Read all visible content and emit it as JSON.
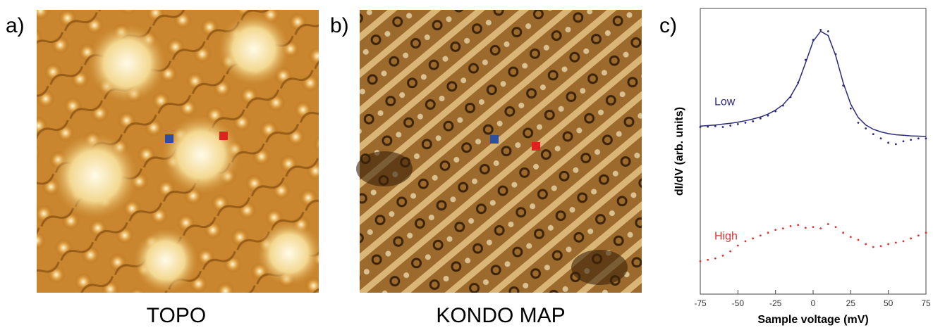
{
  "panels": {
    "a": {
      "letter": "a)",
      "caption": "TOPO"
    },
    "b": {
      "letter": "b)",
      "caption": "KONDO MAP"
    },
    "c": {
      "letter": "c)"
    }
  },
  "chart_data": {
    "type": "line",
    "xlabel": "Sample voltage (mV)",
    "ylabel": "dI/dV (arb. units)",
    "xlim": [
      -75,
      75
    ],
    "xticks": [
      -75,
      -50,
      -25,
      0,
      25,
      50,
      75
    ],
    "ylim": [
      0,
      10
    ],
    "x": [
      -75,
      -70,
      -65,
      -60,
      -55,
      -50,
      -45,
      -40,
      -35,
      -30,
      -25,
      -20,
      -15,
      -10,
      -5,
      0,
      5,
      10,
      15,
      20,
      25,
      30,
      35,
      40,
      45,
      50,
      55,
      60,
      65,
      70,
      75
    ],
    "series": [
      {
        "name": "Low",
        "color": "#2b2a7a",
        "line_style": "dotted",
        "values": [
          5.85,
          5.86,
          5.88,
          5.85,
          5.9,
          5.95,
          6.0,
          6.05,
          6.15,
          6.25,
          6.4,
          6.6,
          6.9,
          7.4,
          8.2,
          8.9,
          9.25,
          9.2,
          8.4,
          7.3,
          6.5,
          6.0,
          5.8,
          5.6,
          5.45,
          5.3,
          5.25,
          5.35,
          5.4,
          5.45,
          5.45
        ]
      },
      {
        "color": "#2b2a7a",
        "line_style": "solid",
        "values": [
          5.88,
          5.9,
          5.92,
          5.95,
          5.98,
          6.02,
          6.07,
          6.13,
          6.2,
          6.3,
          6.44,
          6.63,
          6.92,
          7.38,
          8.1,
          8.85,
          9.2,
          9.05,
          8.35,
          7.4,
          6.65,
          6.18,
          5.92,
          5.77,
          5.68,
          5.62,
          5.58,
          5.56,
          5.54,
          5.53,
          5.52
        ]
      },
      {
        "name": "High",
        "color": "#e0312f",
        "line_style": "dotted",
        "values": [
          1.15,
          1.2,
          1.25,
          1.35,
          1.5,
          1.7,
          1.85,
          1.95,
          2.05,
          2.15,
          2.25,
          2.3,
          2.38,
          2.42,
          2.32,
          2.35,
          2.3,
          2.45,
          2.35,
          2.15,
          2.0,
          1.9,
          1.75,
          1.65,
          1.68,
          1.75,
          1.8,
          1.85,
          1.95,
          2.05,
          2.15
        ]
      }
    ]
  }
}
